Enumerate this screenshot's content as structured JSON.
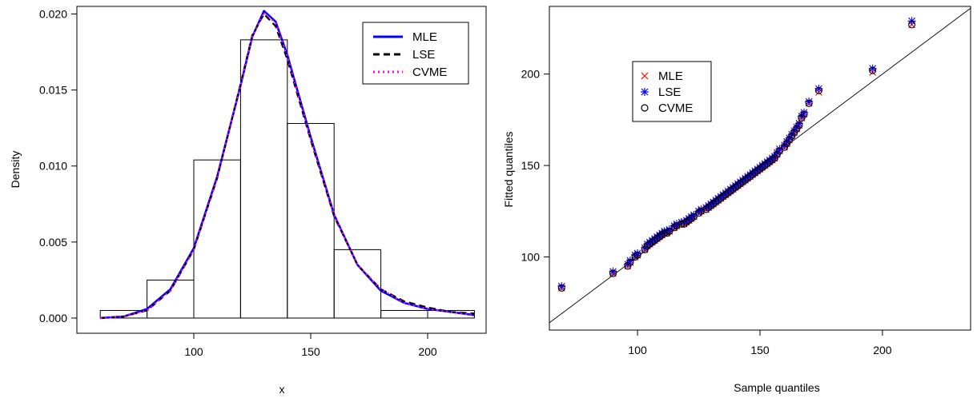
{
  "chart_data": [
    {
      "type": "bar",
      "subtype": "histogram-with-density-curves",
      "xlabel": "x",
      "ylabel": "Density",
      "xlim": [
        50,
        225
      ],
      "ylim": [
        -0.001,
        0.0205
      ],
      "x_ticks": [
        100,
        150,
        200
      ],
      "x_tick_labels": [
        "100",
        "150",
        "200"
      ],
      "y_ticks": [
        0.0,
        0.005,
        0.01,
        0.015,
        0.02
      ],
      "y_tick_labels": [
        "0.000",
        "0.005",
        "0.010",
        "0.015",
        "0.020"
      ],
      "bins": [
        {
          "x0": 60,
          "x1": 80,
          "density": 0.0005
        },
        {
          "x0": 80,
          "x1": 100,
          "density": 0.0025
        },
        {
          "x0": 100,
          "x1": 120,
          "density": 0.0104
        },
        {
          "x0": 120,
          "x1": 140,
          "density": 0.0183
        },
        {
          "x0": 140,
          "x1": 160,
          "density": 0.0128
        },
        {
          "x0": 160,
          "x1": 180,
          "density": 0.0045
        },
        {
          "x0": 180,
          "x1": 200,
          "density": 0.0005
        },
        {
          "x0": 200,
          "x1": 220,
          "density": 0.0005
        }
      ],
      "series": [
        {
          "name": "MLE",
          "color": "#0000ff",
          "style": "solid",
          "x": [
            60,
            70,
            80,
            90,
            100,
            110,
            120,
            125,
            130,
            135,
            140,
            150,
            160,
            170,
            180,
            190,
            200,
            210,
            220
          ],
          "y": [
            0.0,
            0.0001,
            0.0006,
            0.0019,
            0.0046,
            0.0093,
            0.0153,
            0.0185,
            0.0202,
            0.0195,
            0.0173,
            0.0119,
            0.0068,
            0.0035,
            0.0018,
            0.001,
            0.0006,
            0.0004,
            0.0002
          ]
        },
        {
          "name": "LSE",
          "color": "#000000",
          "style": "dashed",
          "x": [
            60,
            70,
            80,
            90,
            100,
            110,
            120,
            125,
            130,
            135,
            140,
            150,
            160,
            170,
            180,
            190,
            200,
            210,
            220
          ],
          "y": [
            0.0,
            0.0001,
            0.0005,
            0.0018,
            0.0045,
            0.0092,
            0.0154,
            0.0186,
            0.02,
            0.0192,
            0.017,
            0.0117,
            0.0067,
            0.0035,
            0.0019,
            0.0011,
            0.0007,
            0.0004,
            0.0003
          ]
        },
        {
          "name": "CVME",
          "color": "#ff00ff",
          "style": "dotted",
          "x": [
            60,
            70,
            80,
            90,
            100,
            110,
            120,
            125,
            130,
            135,
            140,
            150,
            160,
            170,
            180,
            190,
            200,
            210,
            220
          ],
          "y": [
            0.0,
            0.0001,
            0.0005,
            0.0018,
            0.0045,
            0.0092,
            0.0153,
            0.0185,
            0.0201,
            0.0194,
            0.0172,
            0.0118,
            0.0068,
            0.0035,
            0.0019,
            0.001,
            0.0006,
            0.0004,
            0.0002
          ]
        }
      ],
      "legend": {
        "position": "top-right",
        "entries": [
          "MLE",
          "LSE",
          "CVME"
        ]
      },
      "grid": false
    },
    {
      "type": "scatter",
      "subtype": "qq-plot",
      "xlabel": "Sample quantiles",
      "ylabel": "Fitted quantiles",
      "xlim": [
        64,
        236
      ],
      "ylim": [
        60,
        237
      ],
      "x_ticks": [
        100,
        150,
        200
      ],
      "x_tick_labels": [
        "100",
        "150",
        "200"
      ],
      "y_ticks": [
        100,
        150,
        200
      ],
      "y_tick_labels": [
        "100",
        "150",
        "200"
      ],
      "reference_line": "y = x",
      "x": [
        69,
        90,
        96,
        97,
        99,
        100,
        103,
        104,
        105,
        106,
        107,
        108,
        109,
        110,
        111,
        112,
        113,
        115,
        116,
        118,
        119,
        120,
        121,
        122,
        123,
        125,
        126,
        128,
        129,
        130,
        131,
        132,
        133,
        134,
        135,
        136,
        137,
        138,
        139,
        140,
        141,
        142,
        143,
        144,
        145,
        146,
        147,
        148,
        149,
        150,
        151,
        152,
        153,
        154,
        155,
        156,
        157,
        158,
        160,
        161,
        162,
        163,
        164,
        165,
        166,
        167,
        168,
        170,
        174,
        196,
        212
      ],
      "series": [
        {
          "name": "MLE",
          "color": "#ff0000",
          "marker": "x",
          "y": [
            83,
            91,
            95,
            97,
            100,
            101,
            104,
            106,
            107,
            108,
            109,
            110,
            111,
            112,
            113,
            113,
            114,
            116,
            117,
            118,
            118,
            119,
            120,
            121,
            122,
            124,
            125,
            126,
            127,
            128,
            129,
            130,
            131,
            132,
            133,
            134,
            135,
            136,
            137,
            138,
            139,
            140,
            141,
            142,
            143,
            144,
            145,
            146,
            147,
            148,
            149,
            150,
            151,
            152,
            153,
            154,
            156,
            158,
            160,
            162,
            164,
            166,
            168,
            170,
            172,
            176,
            178,
            184,
            190,
            201,
            227
          ]
        },
        {
          "name": "LSE",
          "color": "#0000ff",
          "marker": "asterisk",
          "y": [
            84,
            92,
            96,
            98,
            101,
            102,
            105,
            107,
            108,
            109,
            110,
            111,
            112,
            113,
            114,
            114,
            115,
            117,
            118,
            119,
            119,
            120,
            121,
            122,
            123,
            125,
            126,
            127,
            128,
            129,
            130,
            131,
            132,
            133,
            134,
            135,
            136,
            137,
            138,
            139,
            140,
            141,
            142,
            143,
            144,
            145,
            146,
            147,
            148,
            149,
            150,
            151,
            152,
            153,
            154,
            155,
            157,
            159,
            161,
            163,
            165,
            167,
            169,
            171,
            173,
            177,
            179,
            185,
            192,
            203,
            229
          ]
        },
        {
          "name": "CVME",
          "color": "#000000",
          "marker": "circle",
          "y": [
            83,
            91,
            95,
            97,
            100,
            101,
            104,
            106,
            107,
            108,
            109,
            110,
            111,
            112,
            113,
            113,
            114,
            116,
            117,
            118,
            118,
            119,
            120,
            121,
            122,
            124,
            125,
            126,
            127,
            128,
            129,
            130,
            131,
            132,
            133,
            134,
            135,
            136,
            137,
            138,
            139,
            140,
            141,
            142,
            143,
            144,
            145,
            146,
            147,
            148,
            149,
            150,
            151,
            152,
            153,
            154,
            156,
            158,
            160,
            162,
            164,
            166,
            168,
            170,
            172,
            176,
            178,
            184,
            191,
            202,
            227
          ]
        }
      ],
      "legend": {
        "position": "top-left",
        "entries": [
          "MLE",
          "LSE",
          "CVME"
        ]
      },
      "grid": false
    }
  ]
}
